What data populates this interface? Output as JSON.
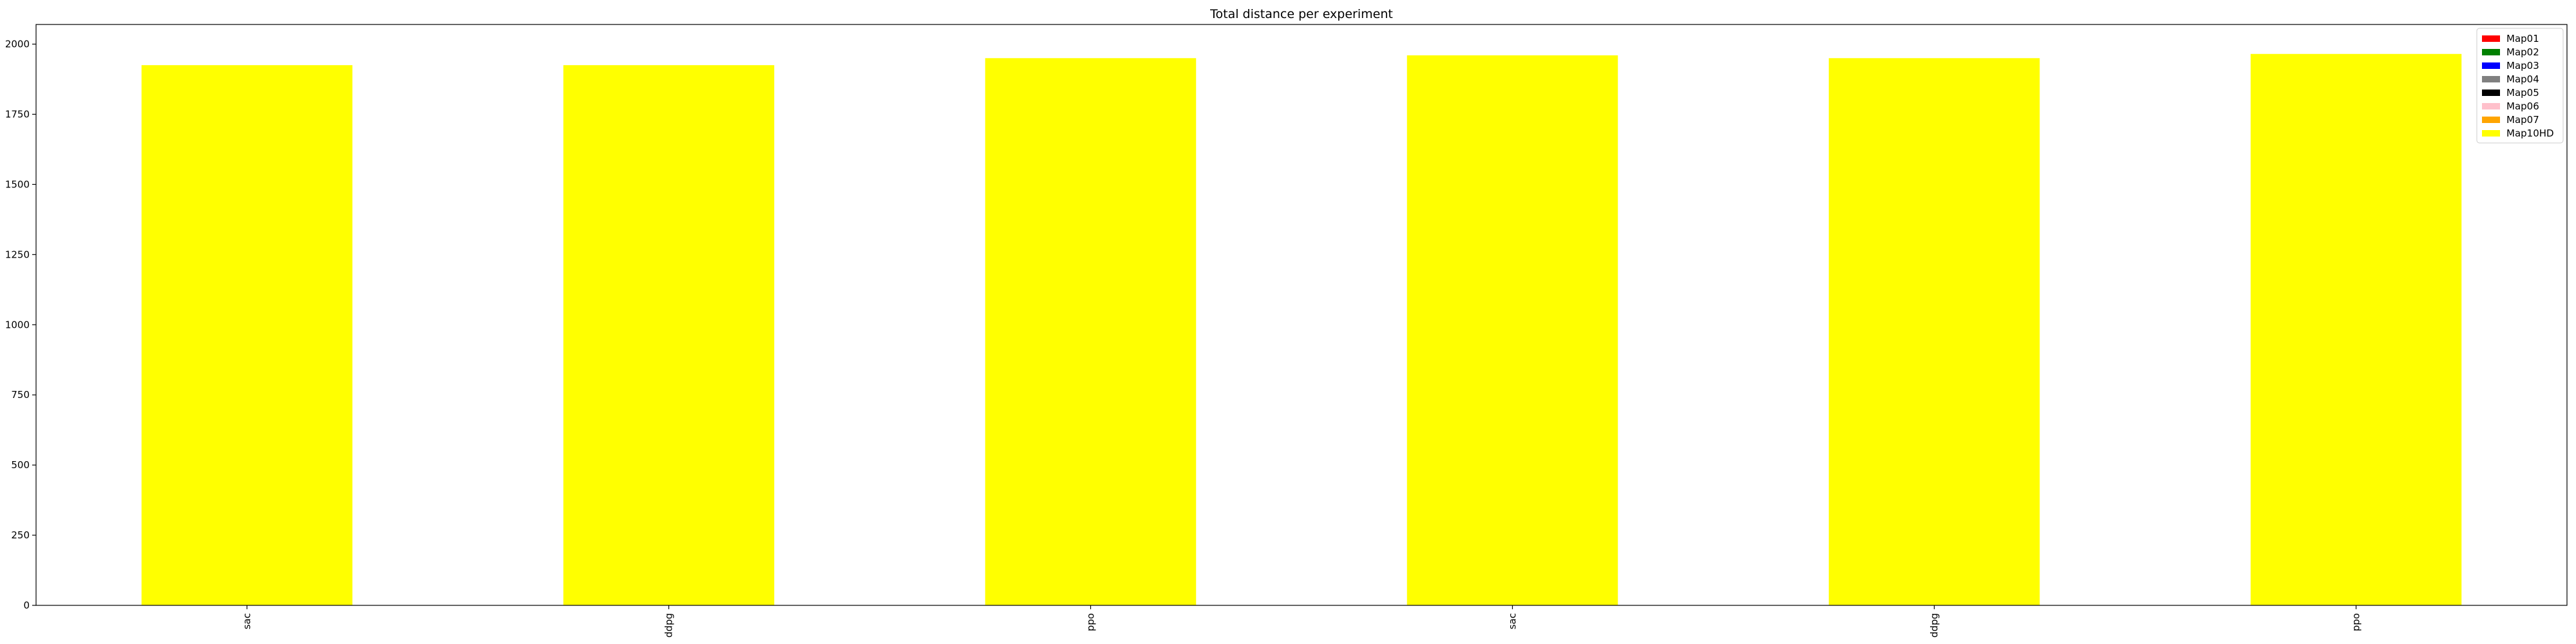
{
  "chart_data": {
    "type": "bar",
    "stacked": true,
    "title": "Total distance per experiment",
    "xlabel": "",
    "ylabel": "",
    "categories": [
      "sac",
      "ddpg",
      "ppo",
      "sac",
      "ddpg",
      "ppo"
    ],
    "ylim": [
      0,
      2070
    ],
    "yticks": [
      0,
      250,
      500,
      750,
      1000,
      1250,
      1500,
      1750,
      2000
    ],
    "grid": false,
    "legend_position": "top-right",
    "series": [
      {
        "name": "Map01",
        "color": "#ff0000",
        "values": [
          0,
          0,
          0,
          0,
          0,
          0
        ]
      },
      {
        "name": "Map02",
        "color": "#008000",
        "values": [
          0,
          0,
          0,
          0,
          0,
          0
        ]
      },
      {
        "name": "Map03",
        "color": "#0000ff",
        "values": [
          0,
          0,
          0,
          0,
          0,
          0
        ]
      },
      {
        "name": "Map04",
        "color": "#808080",
        "values": [
          0,
          0,
          0,
          0,
          0,
          0
        ]
      },
      {
        "name": "Map05",
        "color": "#000000",
        "values": [
          0,
          0,
          0,
          0,
          0,
          0
        ]
      },
      {
        "name": "Map06",
        "color": "#ffc0cb",
        "values": [
          0,
          0,
          0,
          0,
          0,
          0
        ]
      },
      {
        "name": "Map07",
        "color": "#ffa500",
        "values": [
          0,
          0,
          0,
          0,
          0,
          0
        ]
      },
      {
        "name": "Map10HD",
        "color": "#ffff00",
        "values": [
          1925,
          1925,
          1950,
          1960,
          1950,
          1965
        ]
      }
    ]
  }
}
